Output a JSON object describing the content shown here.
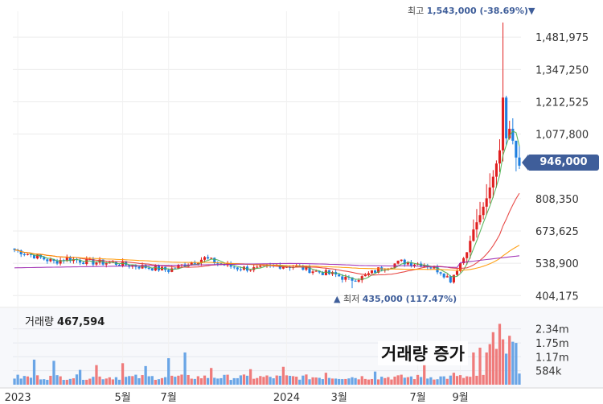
{
  "chart_data": {
    "type": "candlestick",
    "price_ticks": [
      "1,481,975",
      "1,347,250",
      "1,212,525",
      "1,077,800",
      "808,350",
      "673,625",
      "538,900",
      "404,175"
    ],
    "price_tick_values": [
      1481975,
      1347250,
      1212525,
      1077800,
      808350,
      673625,
      538900,
      404175
    ],
    "ylim": [
      375000,
      1590000
    ],
    "current_price": "946,000",
    "current_price_value": 946000,
    "high_annotation": {
      "label": "최고",
      "value": "1,543,000 (-38.69%)",
      "marker": "▼",
      "price": 1543000
    },
    "low_annotation": {
      "label": "최저",
      "value": "435,000 (117.47%)",
      "marker": "▲",
      "price": 435000
    },
    "x_tick_labels": [
      "2023",
      "5월",
      "7월",
      "2024",
      "3월",
      "7월",
      "9월"
    ],
    "x_tick_index": [
      1,
      33,
      47,
      83,
      99,
      123,
      136
    ],
    "candles_count": 155,
    "close_keypoints": [
      [
        0,
        595000
      ],
      [
        6,
        570000
      ],
      [
        12,
        545000
      ],
      [
        16,
        560000
      ],
      [
        22,
        545000
      ],
      [
        30,
        540000
      ],
      [
        36,
        530000
      ],
      [
        42,
        520000
      ],
      [
        47,
        510000
      ],
      [
        52,
        535000
      ],
      [
        58,
        560000
      ],
      [
        63,
        535000
      ],
      [
        68,
        520000
      ],
      [
        74,
        515000
      ],
      [
        80,
        530000
      ],
      [
        86,
        525000
      ],
      [
        92,
        505000
      ],
      [
        98,
        490000
      ],
      [
        102,
        470000
      ],
      [
        106,
        480000
      ],
      [
        112,
        520000
      ],
      [
        118,
        545000
      ],
      [
        125,
        535000
      ],
      [
        130,
        505000
      ],
      [
        133,
        470000
      ],
      [
        136,
        540000
      ],
      [
        138,
        585000
      ],
      [
        140,
        680000
      ],
      [
        142,
        740000
      ],
      [
        144,
        810000
      ],
      [
        146,
        900000
      ],
      [
        148,
        1010000
      ],
      [
        149,
        1230000
      ],
      [
        150,
        1060000
      ],
      [
        151,
        1100000
      ],
      [
        152,
        1050000
      ],
      [
        153,
        980000
      ],
      [
        154,
        946000
      ]
    ],
    "ma_series": [
      {
        "color": "#4caf50",
        "values_from_index": 0
      },
      {
        "color": "#e53935"
      },
      {
        "color": "#ff9800"
      },
      {
        "color": "#9c27b0"
      }
    ],
    "volume": {
      "label": "거래량",
      "value": "467,594",
      "ticks": [
        "2.34m",
        "1.75m",
        "1.17m",
        "584k"
      ],
      "tick_values": [
        2340000,
        1750000,
        1170000,
        584000
      ],
      "ylim": [
        0,
        2900000
      ],
      "annotation": "거래량 증가",
      "spikes": [
        [
          6,
          1050000
        ],
        [
          12,
          1000000
        ],
        [
          20,
          620000
        ],
        [
          25,
          820000
        ],
        [
          33,
          900000
        ],
        [
          40,
          780000
        ],
        [
          47,
          1110000
        ],
        [
          52,
          1350000
        ],
        [
          60,
          700000
        ],
        [
          72,
          650000
        ],
        [
          82,
          750000
        ],
        [
          95,
          500000
        ],
        [
          110,
          550000
        ],
        [
          125,
          850000
        ],
        [
          134,
          500000
        ],
        [
          140,
          1350000
        ],
        [
          142,
          1550000
        ],
        [
          144,
          1350000
        ],
        [
          145,
          1700000
        ],
        [
          146,
          2200000
        ],
        [
          147,
          1500000
        ],
        [
          148,
          2550000
        ],
        [
          149,
          1900000
        ],
        [
          150,
          1300000
        ],
        [
          151,
          2050000
        ],
        [
          152,
          1800000
        ],
        [
          153,
          1750000
        ],
        [
          154,
          467594
        ]
      ],
      "up_color": "#ef7b7b",
      "down_color": "#6aa5e6"
    },
    "up_color": "#e02020",
    "down_color": "#1e7fe0"
  }
}
